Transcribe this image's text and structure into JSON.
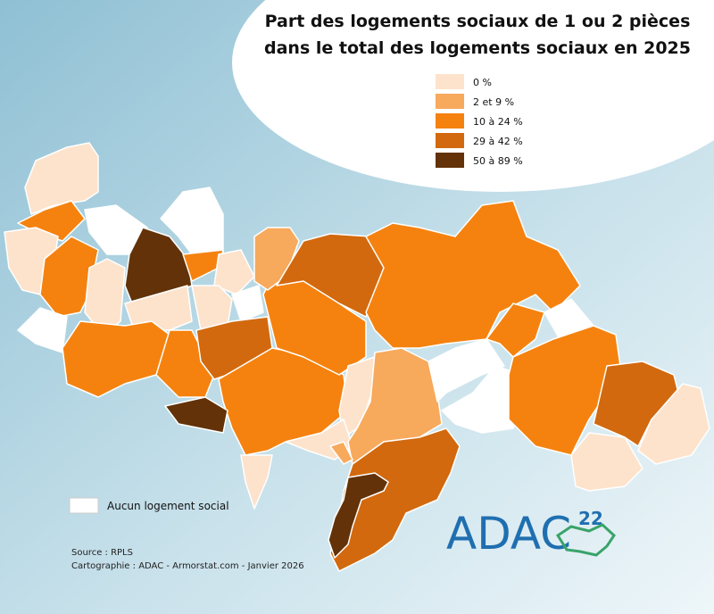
{
  "title_lines": [
    "Part des logements sociaux de 1 ou 2 pièces",
    "dans le total des logements sociaux en 2025"
  ],
  "legend": [
    {
      "label": "0 %",
      "color": "#fde3cc"
    },
    {
      "label": "2 et 9 %",
      "color": "#f7a95c"
    },
    {
      "label": "10 à 24 %",
      "color": "#f5820f"
    },
    {
      "label": "29 à 42 %",
      "color": "#d2690e"
    },
    {
      "label": "50 à 89 %",
      "color": "#633208"
    }
  ],
  "no_data": {
    "label": "Aucun logement social",
    "color": "#ffffff"
  },
  "source": "Source : RPLS",
  "credits": "Cartographie : ADAC - Armorstat.com - Janvier 2026",
  "logo": {
    "text": "ADAC",
    "number": "22"
  }
}
